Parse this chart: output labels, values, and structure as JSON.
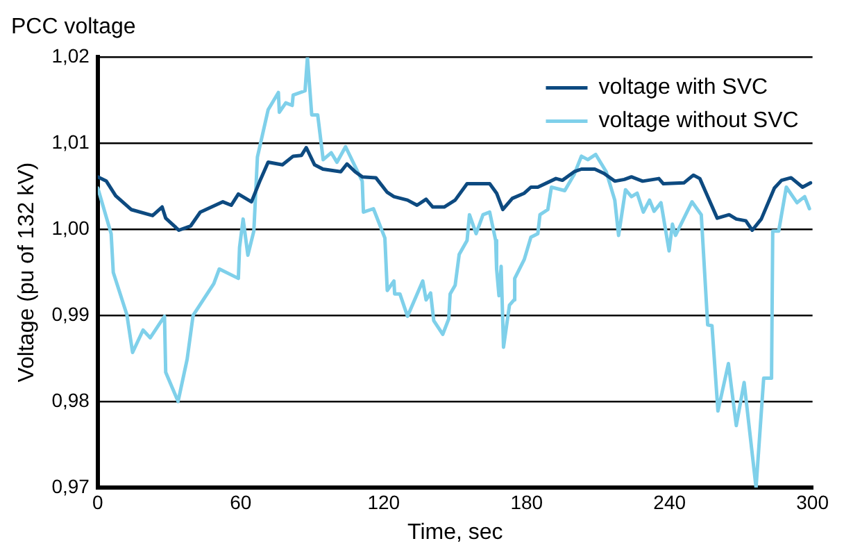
{
  "chart_data": {
    "type": "line",
    "title": "PCC voltage",
    "xlabel": "Time, sec",
    "ylabel": "Voltage (pu of 132 kV)",
    "xlim": [
      0,
      300
    ],
    "xticks": [
      0,
      60,
      120,
      180,
      240,
      300
    ],
    "ylim": [
      0.97,
      1.02
    ],
    "yticks": [
      {
        "value": 0.97,
        "label": "0,97"
      },
      {
        "value": 0.98,
        "label": "0,98"
      },
      {
        "value": 0.99,
        "label": "0,99"
      },
      {
        "value": 1.0,
        "label": "1,00"
      },
      {
        "value": 1.01,
        "label": "1,01"
      },
      {
        "value": 1.02,
        "label": "1,02"
      }
    ],
    "grid": "y",
    "legend": "top right",
    "marker": "none",
    "line_style": "solid",
    "series": [
      {
        "name": "voltage with SVC",
        "color": "#0d4a80",
        "x": [
          0,
          3.6,
          7.5,
          14,
          23,
          27,
          28.5,
          34,
          39,
          43,
          52.5,
          56,
          59,
          64.5,
          68,
          71.5,
          77.5,
          82,
          85.5,
          87.5,
          91,
          94.5,
          102,
          104.6,
          108,
          111,
          116.7,
          121.5,
          124.3,
          130,
          134,
          137.8,
          140.6,
          145.4,
          150,
          155,
          164.5,
          167.4,
          170,
          174,
          179,
          181.8,
          184.7,
          192.3,
          195,
          200,
          203,
          208.6,
          212.5,
          217,
          221,
          224,
          228.7,
          235.5,
          237.4,
          246,
          250,
          252.7,
          260,
          265,
          268,
          272,
          274.7,
          278.5,
          284,
          287,
          291,
          295.8,
          299.2
        ],
        "values": [
          1.0061,
          1.0056,
          1.0039,
          1.0023,
          1.0016,
          1.0026,
          1.0013,
          0.9999,
          1.0004,
          1.002,
          1.0032,
          1.0028,
          1.0041,
          1.0032,
          1.0056,
          1.0078,
          1.0075,
          1.0085,
          1.0086,
          1.0095,
          1.0075,
          1.007,
          1.0067,
          1.0076,
          1.0067,
          1.0061,
          1.006,
          1.0043,
          1.0038,
          1.0034,
          1.0028,
          1.0035,
          1.0026,
          1.0026,
          1.0034,
          1.0053,
          1.0053,
          1.0042,
          1.0023,
          1.0036,
          1.0042,
          1.0049,
          1.0049,
          1.0059,
          1.0057,
          1.0067,
          1.007,
          1.007,
          1.0065,
          1.0056,
          1.0058,
          1.0061,
          1.0056,
          1.0059,
          1.0053,
          1.0054,
          1.0063,
          1.0059,
          1.0013,
          1.0017,
          1.0012,
          1.001,
          0.9999,
          1.0012,
          1.0048,
          1.0057,
          1.006,
          1.0049,
          1.0054
        ]
      },
      {
        "name": "voltage without SVC",
        "color": "#7fd0ea",
        "x": [
          0,
          5.6,
          6.5,
          12.2,
          14.6,
          19,
          22,
          28,
          28.5,
          33.7,
          37.5,
          40,
          48.7,
          51,
          59,
          59.5,
          61,
          63,
          65.5,
          67,
          71.5,
          75.8,
          76.2,
          78.9,
          81.6,
          82,
          87,
          88,
          89.8,
          92.3,
          94.6,
          98,
          100.4,
          104,
          111,
          111.5,
          115.7,
          120.5,
          121.5,
          124.3,
          124.6,
          126.8,
          130,
          136.4,
          137.8,
          139.7,
          141,
          144.8,
          147.3,
          147.9,
          150,
          151.7,
          155,
          156,
          158.8,
          161.7,
          164.5,
          167,
          167.4,
          168.4,
          169.3,
          170.3,
          172.8,
          174.7,
          175,
          179,
          181.8,
          184.7,
          185.6,
          188.9,
          190.4,
          196,
          200,
          203,
          205.7,
          209,
          213.4,
          217,
          218.6,
          221.5,
          224,
          226.4,
          229,
          231.6,
          233.5,
          236.4,
          239.8,
          241.2,
          242.5,
          249.4,
          253.3,
          256,
          257.8,
          260.3,
          264.7,
          268,
          271.3,
          276.3,
          279.5,
          282.8,
          283.3,
          285.8,
          289,
          293.5,
          296.7,
          298.7
        ],
        "values": [
          1.0048,
          0.9995,
          0.995,
          0.9901,
          0.9857,
          0.9883,
          0.9874,
          0.9899,
          0.9834,
          0.98,
          0.9849,
          0.99,
          0.9937,
          0.9954,
          0.9943,
          0.9979,
          1.0012,
          0.997,
          0.9998,
          1.0084,
          1.0139,
          1.0159,
          1.0136,
          1.0147,
          1.0144,
          1.0156,
          1.0161,
          1.02,
          1.0133,
          1.0133,
          1.0081,
          1.0089,
          1.0078,
          1.0096,
          1.0056,
          1.002,
          1.0024,
          0.999,
          0.9929,
          0.994,
          0.9925,
          0.9925,
          0.9899,
          0.994,
          0.9918,
          0.9926,
          0.9894,
          0.9878,
          0.9896,
          0.9925,
          0.9935,
          0.9971,
          0.9987,
          1.0017,
          0.9995,
          1.0017,
          1.002,
          0.9987,
          0.9954,
          0.9923,
          0.9957,
          0.9863,
          0.9912,
          0.9918,
          0.9943,
          0.9965,
          0.9991,
          0.9995,
          1.0017,
          1.0023,
          1.0049,
          1.0045,
          1.0064,
          1.0085,
          1.0081,
          1.0087,
          1.0067,
          1.0034,
          0.9993,
          1.0046,
          1.0038,
          1.0042,
          1.002,
          1.0034,
          1.0021,
          1.0031,
          0.9975,
          1.0006,
          0.9993,
          1.0032,
          1.0017,
          0.9889,
          0.9888,
          0.9789,
          0.9844,
          0.9772,
          0.9822,
          0.97,
          0.9827,
          0.9827,
          0.9998,
          0.9998,
          1.0049,
          1.0031,
          1.0038,
          1.0024
        ]
      }
    ]
  }
}
